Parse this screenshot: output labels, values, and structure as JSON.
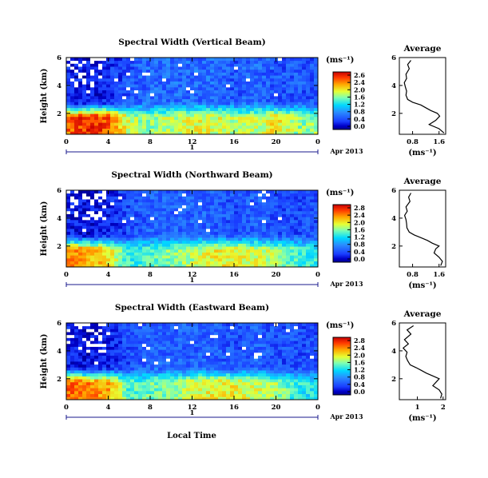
{
  "panels": [
    {
      "title": "Spectral Width (Vertical Beam)",
      "ylabel": "Height (km)",
      "x_ticks": [
        "0",
        "4",
        "8",
        "12",
        "16",
        "20",
        "0"
      ],
      "y_ticks": [
        "6",
        "4",
        "2"
      ],
      "day_label": "1",
      "date_label": "Apr 2013",
      "cbar_unit": "(ms⁻¹)",
      "cbar_ticks": [
        "2.6",
        "2.4",
        "2.0",
        "1.6",
        "1.2",
        "0.8",
        "0.4",
        "0.0"
      ],
      "avg_title": "Average",
      "avg_xticks": [
        "0.8",
        "1.6"
      ],
      "avg_yticks": [
        "6",
        "4",
        "2"
      ],
      "avg_xlabel": "(ms⁻¹)"
    },
    {
      "title": "Spectral Width (Northward Beam)",
      "ylabel": "Height (km)",
      "x_ticks": [
        "0",
        "4",
        "8",
        "12",
        "16",
        "20",
        "0"
      ],
      "y_ticks": [
        "6",
        "4",
        "2"
      ],
      "day_label": "1",
      "date_label": "Apr 2013",
      "cbar_unit": "(ms⁻¹)",
      "cbar_ticks": [
        "2.8",
        "2.4",
        "2.0",
        "1.6",
        "1.2",
        "0.8",
        "0.4",
        "0.0"
      ],
      "avg_title": "Average",
      "avg_xticks": [
        "0.8",
        "1.6"
      ],
      "avg_yticks": [
        "6",
        "4",
        "2"
      ],
      "avg_xlabel": "(ms⁻¹)"
    },
    {
      "title": "Spectral Width (Eastward Beam)",
      "ylabel": "Height (km)",
      "x_ticks": [
        "0",
        "4",
        "8",
        "12",
        "16",
        "20",
        "0"
      ],
      "y_ticks": [
        "6",
        "4",
        "2"
      ],
      "day_label": "1",
      "date_label": "Apr 2013",
      "cbar_unit": "(ms⁻¹)",
      "cbar_ticks": [
        "2.8",
        "2.4",
        "2.0",
        "1.6",
        "1.2",
        "0.8",
        "0.4",
        "0.0"
      ],
      "avg_title": "Average",
      "avg_xticks": [
        "1",
        "2"
      ],
      "avg_yticks": [
        "6",
        "4",
        "2"
      ],
      "avg_xlabel": "(ms⁻¹)"
    }
  ],
  "xlabel": "Local Time",
  "chart_data": [
    {
      "type": "heatmap",
      "title": "Spectral Width (Vertical Beam)",
      "xlabel": "Local Time",
      "ylabel": "Height (km)",
      "xlim": [
        0,
        24
      ],
      "ylim": [
        0.5,
        6
      ],
      "colorbar_range": [
        0.0,
        2.6
      ],
      "description_values": {
        "hours": [
          0,
          2,
          4,
          6,
          8,
          10,
          12,
          14,
          16,
          18,
          20,
          22,
          24
        ],
        "width_below_2km": [
          2.2,
          2.4,
          2.3,
          1.6,
          1.5,
          1.6,
          1.7,
          1.7,
          1.6,
          1.6,
          1.8,
          1.5,
          1.5
        ],
        "width_above_3km": [
          0.3,
          0.2,
          0.3,
          0.5,
          0.6,
          0.6,
          0.6,
          0.6,
          0.5,
          0.6,
          0.5,
          0.5,
          0.5
        ]
      }
    },
    {
      "type": "heatmap",
      "title": "Spectral Width (Northward Beam)",
      "xlabel": "Local Time",
      "ylabel": "Height (km)",
      "xlim": [
        0,
        24
      ],
      "ylim": [
        0.5,
        6
      ],
      "colorbar_range": [
        0.0,
        2.8
      ],
      "description_values": {
        "hours": [
          0,
          2,
          4,
          6,
          8,
          10,
          12,
          14,
          16,
          18,
          20,
          22,
          24
        ],
        "width_below_2km": [
          2.3,
          2.2,
          2.0,
          1.3,
          1.4,
          1.6,
          1.7,
          1.9,
          1.9,
          1.8,
          1.7,
          1.4,
          1.3
        ],
        "width_above_3km": [
          0.3,
          0.2,
          0.3,
          0.5,
          0.6,
          0.6,
          0.6,
          0.6,
          0.5,
          0.6,
          0.5,
          0.5,
          0.5
        ]
      }
    },
    {
      "type": "heatmap",
      "title": "Spectral Width (Eastward Beam)",
      "xlabel": "Local Time",
      "ylabel": "Height (km)",
      "xlim": [
        0,
        24
      ],
      "ylim": [
        0.5,
        6
      ],
      "colorbar_range": [
        0.0,
        2.8
      ],
      "description_values": {
        "hours": [
          0,
          2,
          4,
          6,
          8,
          10,
          12,
          14,
          16,
          18,
          20,
          22,
          24
        ],
        "width_below_2km": [
          2.4,
          2.3,
          2.2,
          1.4,
          1.5,
          1.6,
          1.8,
          1.9,
          1.9,
          1.8,
          1.7,
          1.3,
          1.2
        ],
        "width_above_3km": [
          0.3,
          0.2,
          0.3,
          0.5,
          0.6,
          0.6,
          0.6,
          0.6,
          0.5,
          0.6,
          0.5,
          0.5,
          0.5
        ]
      }
    },
    {
      "type": "line",
      "title": "Average",
      "xlabel": "(ms⁻¹)",
      "ylabel": "Height (km)",
      "xlim": [
        0.4,
        1.8
      ],
      "ylim": [
        0.5,
        6
      ],
      "series": [
        {
          "x": [
            0.75,
            0.65,
            0.7,
            0.6,
            0.62,
            0.55,
            0.58,
            0.62,
            0.6,
            0.65,
            0.8,
            1.05,
            1.2,
            1.35,
            1.55,
            1.62,
            1.5,
            1.3,
            1.6,
            1.75
          ],
          "y": [
            5.8,
            5.5,
            5.2,
            4.8,
            4.5,
            4.2,
            3.9,
            3.6,
            3.3,
            3.0,
            2.8,
            2.6,
            2.4,
            2.2,
            2.0,
            1.8,
            1.5,
            1.2,
            0.9,
            0.6
          ]
        }
      ]
    },
    {
      "type": "line",
      "title": "Average",
      "xlabel": "(ms⁻¹)",
      "ylabel": "Height (km)",
      "xlim": [
        0.4,
        1.8
      ],
      "ylim": [
        0.5,
        6
      ],
      "series": [
        {
          "x": [
            0.75,
            0.68,
            0.72,
            0.6,
            0.64,
            0.56,
            0.6,
            0.62,
            0.63,
            0.7,
            0.85,
            1.05,
            1.25,
            1.4,
            1.6,
            1.5,
            1.45,
            1.6,
            1.7,
            1.65
          ],
          "y": [
            5.8,
            5.5,
            5.2,
            4.8,
            4.5,
            4.2,
            3.9,
            3.6,
            3.3,
            3.0,
            2.8,
            2.6,
            2.4,
            2.2,
            2.0,
            1.8,
            1.5,
            1.2,
            0.9,
            0.6
          ]
        }
      ]
    },
    {
      "type": "line",
      "title": "Average",
      "xlabel": "(ms⁻¹)",
      "ylabel": "Height (km)",
      "xlim": [
        0.3,
        2.1
      ],
      "ylim": [
        0.5,
        6
      ],
      "series": [
        {
          "x": [
            0.85,
            0.6,
            0.75,
            0.5,
            0.65,
            0.45,
            0.6,
            0.55,
            0.62,
            0.72,
            0.95,
            1.15,
            1.35,
            1.6,
            1.85,
            1.75,
            1.6,
            1.85,
            1.95,
            1.9
          ],
          "y": [
            5.8,
            5.5,
            5.2,
            4.8,
            4.5,
            4.2,
            3.9,
            3.6,
            3.3,
            3.0,
            2.8,
            2.6,
            2.4,
            2.2,
            2.0,
            1.8,
            1.5,
            1.2,
            0.9,
            0.6
          ]
        }
      ]
    }
  ]
}
